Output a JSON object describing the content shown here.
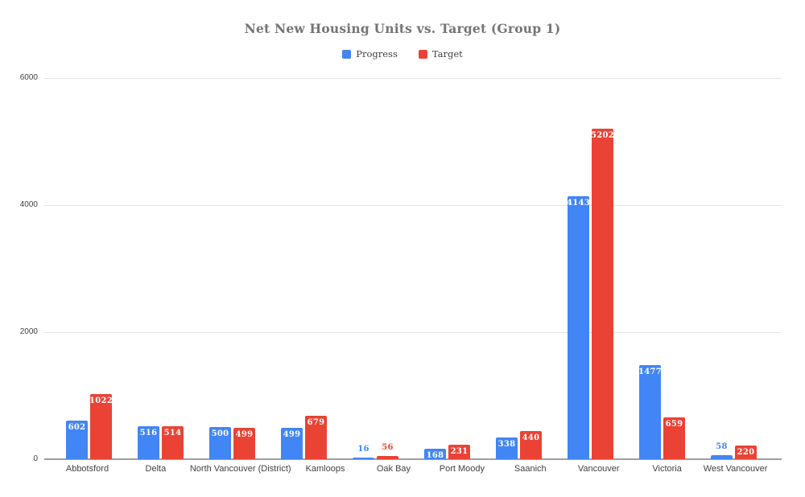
{
  "title": "Net New Housing Units vs. Target (Group 1)",
  "colors": {
    "background": "#ffffff",
    "progress_blue": "#4285F4",
    "target_red": "#EA4335",
    "gridline": "#e3e3e3",
    "axis_line": "#9e9e9e",
    "axis_text": "#424242",
    "title_text": "#757575"
  },
  "chart_data": {
    "type": "bar",
    "title": "Net New Housing Units vs. Target (Group 1)",
    "xlabel": "",
    "ylabel": "",
    "ylim": [
      0,
      6000
    ],
    "yticks": [
      0,
      2000,
      4000,
      6000
    ],
    "grid": true,
    "legend_position": "top",
    "categories": [
      "Abbotsford",
      "Delta",
      "North Vancouver (District)",
      "Kamloops",
      "Oak Bay",
      "Port Moody",
      "Saanich",
      "Vancouver",
      "Victoria",
      "West Vancouver"
    ],
    "series": [
      {
        "name": "Progress",
        "color": "#4285F4",
        "values": [
          602,
          516,
          500,
          499,
          16,
          168,
          338,
          4143,
          1477,
          58
        ]
      },
      {
        "name": "Target",
        "color": "#EA4335",
        "values": [
          1022,
          514,
          499,
          679,
          56,
          231,
          440,
          5202,
          659,
          220
        ]
      }
    ]
  }
}
